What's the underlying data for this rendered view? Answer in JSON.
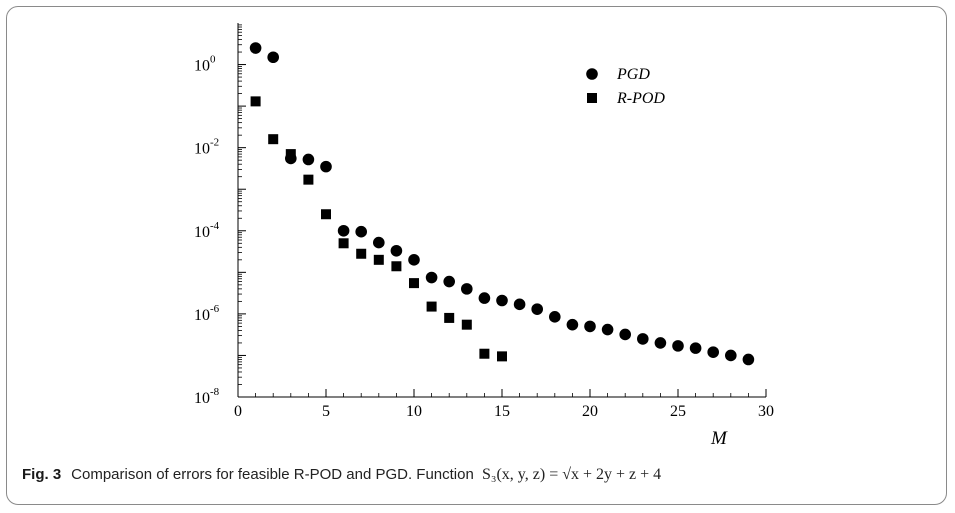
{
  "caption": {
    "figure_label": "Fig. 3",
    "text": "Comparison of errors for feasible R-POD and PGD. Function ",
    "formula": "S₃(x, y, z) = √x + 2y + z + 4"
  },
  "chart_data": {
    "type": "scatter",
    "title": "",
    "xlabel": "M",
    "ylabel": "",
    "xlim": [
      0,
      30
    ],
    "ylim": [
      1e-08,
      10
    ],
    "yscale": "log",
    "grid": false,
    "legend_position": "top-right",
    "x_ticks": [
      0,
      5,
      10,
      15,
      20,
      25,
      30
    ],
    "y_ticks": [
      {
        "value": 1,
        "base": "10",
        "exp": "0"
      },
      {
        "value": 0.01,
        "base": "10",
        "exp": "-2"
      },
      {
        "value": 0.0001,
        "base": "10",
        "exp": "-4"
      },
      {
        "value": 1e-06,
        "base": "10",
        "exp": "-6"
      },
      {
        "value": 1e-08,
        "base": "10",
        "exp": "-8"
      }
    ],
    "series": [
      {
        "name": "PGD",
        "marker": "circle",
        "color": "#000000",
        "x": [
          1,
          2,
          3,
          4,
          5,
          6,
          7,
          8,
          9,
          10,
          11,
          12,
          13,
          14,
          15,
          16,
          17,
          18,
          19,
          20,
          21,
          22,
          23,
          24,
          25,
          26,
          27,
          28,
          29
        ],
        "y": [
          2.5,
          1.5,
          0.0055,
          0.0052,
          0.0035,
          0.0001,
          9.5e-05,
          5.2e-05,
          3.3e-05,
          2e-05,
          7.5e-06,
          6e-06,
          4e-06,
          2.4e-06,
          2.1e-06,
          1.7e-06,
          1.3e-06,
          8.5e-07,
          5.5e-07,
          5e-07,
          4.2e-07,
          3.2e-07,
          2.5e-07,
          2e-07,
          1.7e-07,
          1.5e-07,
          1.2e-07,
          1e-07,
          8e-08
        ]
      },
      {
        "name": "R-POD",
        "marker": "square",
        "color": "#000000",
        "x": [
          1,
          2,
          3,
          4,
          5,
          6,
          7,
          8,
          9,
          10,
          11,
          12,
          13,
          14,
          15
        ],
        "y": [
          0.13,
          0.016,
          0.007,
          0.0017,
          0.00025,
          5e-05,
          2.8e-05,
          2e-05,
          1.4e-05,
          5.5e-06,
          1.5e-06,
          8e-07,
          5.5e-07,
          1.1e-07,
          9.5e-08
        ]
      }
    ]
  }
}
